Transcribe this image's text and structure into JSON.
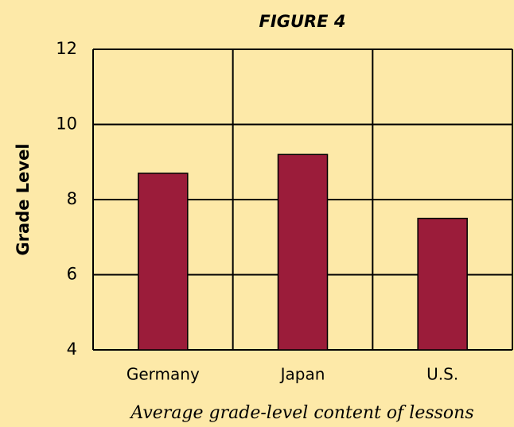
{
  "chart_data": {
    "type": "bar",
    "title": "FIGURE 4",
    "y_label": "Grade Level",
    "x_label": "Average grade-level content of lessons",
    "categories": [
      "Germany",
      "Japan",
      "U.S."
    ],
    "values": [
      8.7,
      9.2,
      7.5
    ],
    "color": "#9b1c3a",
    "ylim": [
      4,
      12
    ],
    "yticks": [
      4,
      6,
      8,
      10,
      12
    ],
    "grid": true
  }
}
